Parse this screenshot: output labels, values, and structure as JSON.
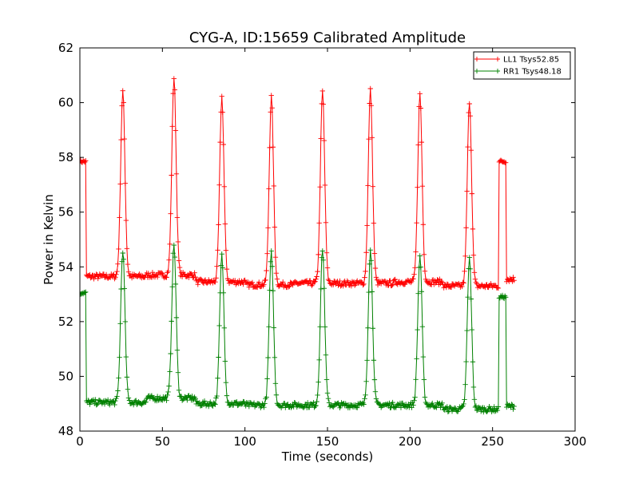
{
  "chart_data": {
    "type": "line",
    "title": "CYG-A, ID:15659 Calibrated Amplitude",
    "xlabel": "Time (seconds)",
    "ylabel": "Power in Kelvin",
    "xlim": [
      0,
      300
    ],
    "ylim": [
      48,
      62
    ],
    "xticks": [
      "0",
      "50",
      "100",
      "150",
      "200",
      "250",
      "300"
    ],
    "yticks": [
      "48",
      "50",
      "52",
      "54",
      "56",
      "58",
      "60",
      "62"
    ],
    "grid": false,
    "legend_position": "top-right",
    "marker": "plus",
    "baseline_dips": [
      4,
      254
    ],
    "series": [
      {
        "name": "LL1 Tsys52.85",
        "color": "#ff0000",
        "edge_level": 57.85,
        "edge_spans": [
          [
            0,
            4
          ],
          [
            254,
            258
          ]
        ],
        "segments": [
          {
            "x_start": 4,
            "x_end": 40,
            "level": 53.65
          },
          {
            "x_start": 40,
            "x_end": 70,
            "level": 53.7
          },
          {
            "x_start": 70,
            "x_end": 100,
            "level": 53.45
          },
          {
            "x_start": 100,
            "x_end": 130,
            "level": 53.35
          },
          {
            "x_start": 130,
            "x_end": 160,
            "level": 53.4
          },
          {
            "x_start": 160,
            "x_end": 190,
            "level": 53.4
          },
          {
            "x_start": 190,
            "x_end": 220,
            "level": 53.45
          },
          {
            "x_start": 220,
            "x_end": 254,
            "level": 53.3
          },
          {
            "x_start": 258,
            "x_end": 263,
            "level": 53.55
          }
        ],
        "peaks": [
          {
            "x": 26,
            "y": 60.4
          },
          {
            "x": 57,
            "y": 60.9
          },
          {
            "x": 86,
            "y": 60.2
          },
          {
            "x": 116,
            "y": 60.2
          },
          {
            "x": 147,
            "y": 60.4
          },
          {
            "x": 176,
            "y": 60.45
          },
          {
            "x": 206,
            "y": 60.3
          },
          {
            "x": 236,
            "y": 60.05
          }
        ]
      },
      {
        "name": "RR1 Tsys48.18",
        "color": "#008000",
        "edge_level": 53.05,
        "edge_level_end": 52.9,
        "edge_spans": [
          [
            0,
            4
          ],
          [
            254,
            258
          ]
        ],
        "segments": [
          {
            "x_start": 4,
            "x_end": 40,
            "level": 49.05
          },
          {
            "x_start": 40,
            "x_end": 70,
            "level": 49.2
          },
          {
            "x_start": 70,
            "x_end": 100,
            "level": 49.0
          },
          {
            "x_start": 100,
            "x_end": 130,
            "level": 48.95
          },
          {
            "x_start": 130,
            "x_end": 160,
            "level": 48.95
          },
          {
            "x_start": 160,
            "x_end": 190,
            "level": 48.95
          },
          {
            "x_start": 190,
            "x_end": 220,
            "level": 48.95
          },
          {
            "x_start": 220,
            "x_end": 254,
            "level": 48.8
          },
          {
            "x_start": 258,
            "x_end": 263,
            "level": 48.9
          }
        ],
        "peaks": [
          {
            "x": 26,
            "y": 54.6
          },
          {
            "x": 57,
            "y": 54.8
          },
          {
            "x": 86,
            "y": 54.4
          },
          {
            "x": 116,
            "y": 54.5
          },
          {
            "x": 147,
            "y": 54.65
          },
          {
            "x": 176,
            "y": 54.6
          },
          {
            "x": 206,
            "y": 54.4
          },
          {
            "x": 236,
            "y": 54.3
          }
        ]
      }
    ]
  }
}
